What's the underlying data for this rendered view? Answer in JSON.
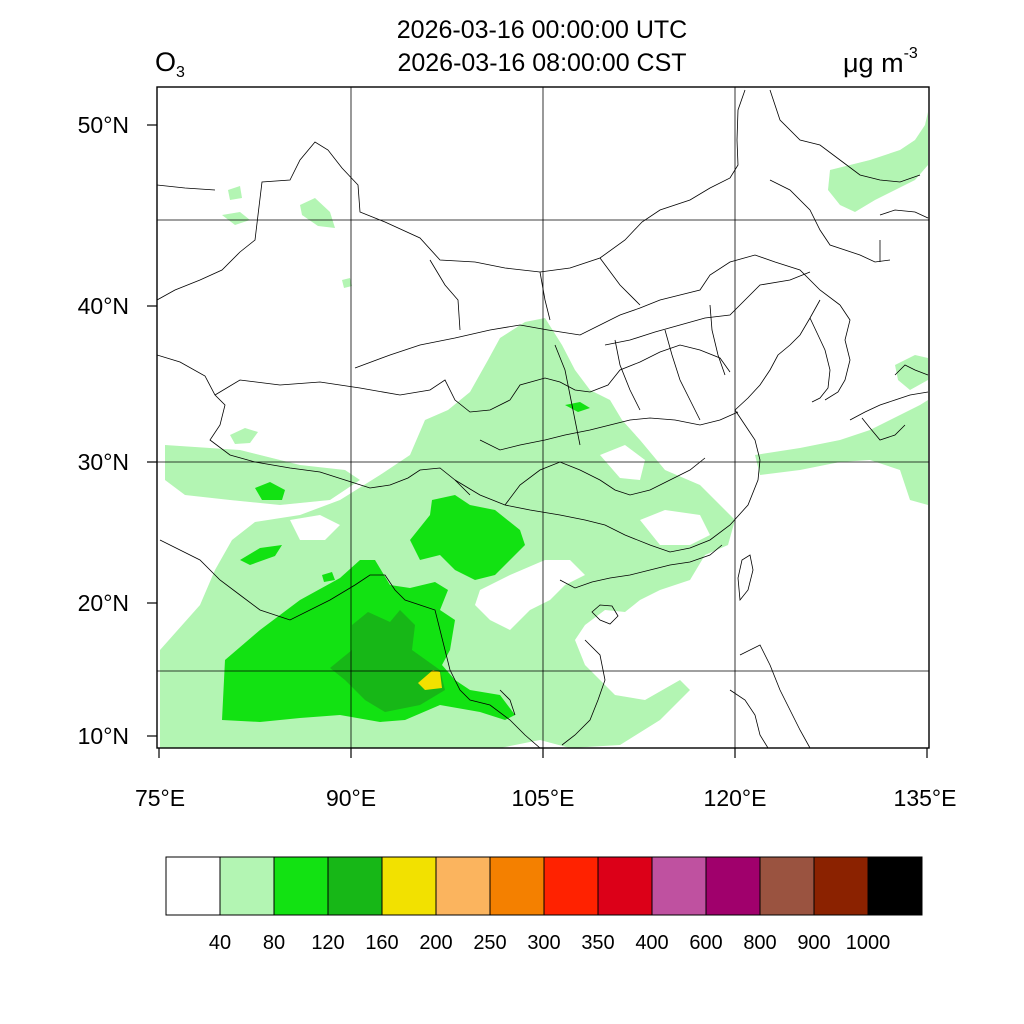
{
  "title": {
    "line1": "2026-03-16 00:00:00 UTC",
    "line2": "2026-03-16 08:00:00 CST",
    "variable": "O",
    "variable_sub": "3",
    "units": "μg m",
    "units_sup": "-3"
  },
  "map": {
    "lat_labels": [
      "50°N",
      "40°N",
      "30°N",
      "20°N",
      "10°N"
    ],
    "lon_labels": [
      "75°E",
      "90°E",
      "105°E",
      "120°E",
      "135°E"
    ],
    "grid": true,
    "colors": {
      "c40_80": "#b3f5b3",
      "c80_120": "#12e212",
      "c120_160": "#17b717",
      "c160_200": "#f2e100",
      "border": "#000000"
    }
  },
  "legend": {
    "colors": [
      "#ffffff",
      "#b3f5b3",
      "#12e212",
      "#17b717",
      "#f2e100",
      "#fbb45e",
      "#f48000",
      "#ff2200",
      "#dc0018",
      "#bf51a0",
      "#a0006c",
      "#9a5340",
      "#8b2200",
      "#000000"
    ],
    "labels": [
      "40",
      "80",
      "120",
      "160",
      "200",
      "250",
      "300",
      "350",
      "400",
      "600",
      "800",
      "900",
      "1000"
    ]
  }
}
